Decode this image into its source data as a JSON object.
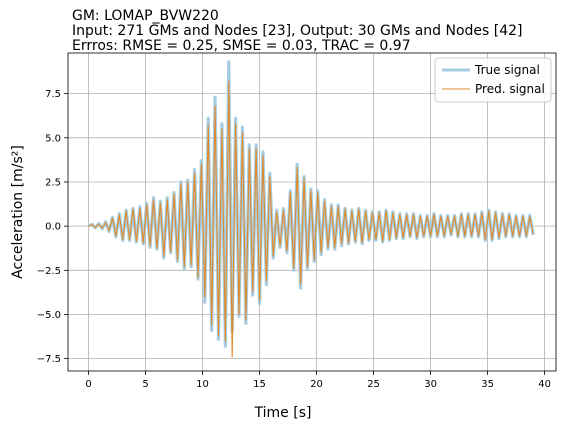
{
  "chart_data": {
    "type": "line",
    "title_lines": [
      "GM: LOMAP_BVW220",
      "Input: 271 GMs and Nodes [23], Output: 30 GMs and Nodes [42]",
      "Errros: RMSE = 0.25, SMSE = 0.03, TRAC = 0.97"
    ],
    "xlabel": "Time [s]",
    "ylabel": "Acceleration [m/s²]",
    "xlim": [
      -1.8,
      41.0
    ],
    "ylim": [
      -8.2,
      9.8
    ],
    "xticks": [
      0,
      5,
      10,
      15,
      20,
      25,
      30,
      35,
      40
    ],
    "yticks": [
      -7.5,
      -5.0,
      -2.5,
      0.0,
      2.5,
      5.0,
      7.5
    ],
    "ytick_labels": [
      "−7.5",
      "−5.0",
      "−2.5",
      "0.0",
      "2.5",
      "5.0",
      "7.5"
    ],
    "grid": true,
    "legend_position": "top-right",
    "series": [
      {
        "name": "True signal",
        "color": "#a6cde2",
        "peaks": [
          [
            0.0,
            0
          ],
          [
            0.3,
            0.1
          ],
          [
            0.6,
            -0.1
          ],
          [
            0.9,
            0.15
          ],
          [
            1.2,
            -0.15
          ],
          [
            1.5,
            0.25
          ],
          [
            1.8,
            -0.3
          ],
          [
            2.1,
            0.5
          ],
          [
            2.4,
            -0.6
          ],
          [
            2.7,
            0.7
          ],
          [
            3.0,
            -0.8
          ],
          [
            3.3,
            0.9
          ],
          [
            3.6,
            -0.8
          ],
          [
            3.9,
            1.0
          ],
          [
            4.2,
            -0.9
          ],
          [
            4.5,
            1.1
          ],
          [
            4.8,
            -1.0
          ],
          [
            5.1,
            1.3
          ],
          [
            5.4,
            -1.2
          ],
          [
            5.7,
            1.6
          ],
          [
            6.0,
            -1.3
          ],
          [
            6.3,
            1.4
          ],
          [
            6.6,
            -1.8
          ],
          [
            6.9,
            1.6
          ],
          [
            7.2,
            -1.5
          ],
          [
            7.5,
            1.9
          ],
          [
            7.8,
            -2.0
          ],
          [
            8.1,
            2.5
          ],
          [
            8.4,
            -2.4
          ],
          [
            8.7,
            2.6
          ],
          [
            9.0,
            -2.3
          ],
          [
            9.3,
            3.2
          ],
          [
            9.6,
            -3.0
          ],
          [
            9.9,
            3.7
          ],
          [
            10.2,
            -4.3
          ],
          [
            10.5,
            6.1
          ],
          [
            10.8,
            -5.9
          ],
          [
            11.1,
            7.3
          ],
          [
            11.4,
            -6.4
          ],
          [
            11.7,
            5.8
          ],
          [
            12.0,
            -6.8
          ],
          [
            12.3,
            9.3
          ],
          [
            12.6,
            -6.0
          ],
          [
            12.9,
            6.1
          ],
          [
            13.2,
            -5.1
          ],
          [
            13.5,
            5.6
          ],
          [
            13.8,
            -5.5
          ],
          [
            14.1,
            4.6
          ],
          [
            14.4,
            -3.9
          ],
          [
            14.7,
            4.6
          ],
          [
            15.0,
            -4.4
          ],
          [
            15.3,
            4.2
          ],
          [
            15.6,
            -3.3
          ],
          [
            15.9,
            3.0
          ],
          [
            16.2,
            -1.8
          ],
          [
            16.5,
            0.9
          ],
          [
            16.8,
            -1.2
          ],
          [
            17.1,
            1.0
          ],
          [
            17.4,
            -1.5
          ],
          [
            17.7,
            2.0
          ],
          [
            18.0,
            -2.5
          ],
          [
            18.3,
            3.5
          ],
          [
            18.6,
            -3.5
          ],
          [
            18.9,
            2.8
          ],
          [
            19.2,
            -2.4
          ],
          [
            19.5,
            2.1
          ],
          [
            19.8,
            -2.0
          ],
          [
            20.1,
            2.0
          ],
          [
            20.4,
            -1.6
          ],
          [
            20.7,
            1.5
          ],
          [
            21.0,
            -1.3
          ],
          [
            21.3,
            1.2
          ],
          [
            21.6,
            -1.3
          ],
          [
            21.9,
            1.2
          ],
          [
            22.2,
            -1.1
          ],
          [
            22.5,
            1.0
          ],
          [
            22.8,
            -1.0
          ],
          [
            23.1,
            0.9
          ],
          [
            23.4,
            -0.9
          ],
          [
            23.7,
            1.0
          ],
          [
            24.0,
            -1.0
          ],
          [
            24.3,
            0.9
          ],
          [
            24.6,
            -0.8
          ],
          [
            24.9,
            0.8
          ],
          [
            25.2,
            -0.8
          ],
          [
            25.5,
            0.8
          ],
          [
            25.8,
            -0.9
          ],
          [
            26.1,
            0.9
          ],
          [
            26.4,
            -0.8
          ],
          [
            26.7,
            0.8
          ],
          [
            27.0,
            -0.7
          ],
          [
            27.3,
            0.7
          ],
          [
            27.6,
            -0.7
          ],
          [
            27.9,
            0.7
          ],
          [
            28.2,
            -0.6
          ],
          [
            28.5,
            0.7
          ],
          [
            28.8,
            -0.7
          ],
          [
            29.1,
            0.6
          ],
          [
            29.4,
            -0.6
          ],
          [
            29.7,
            0.6
          ],
          [
            30.0,
            -0.6
          ],
          [
            30.3,
            0.7
          ],
          [
            30.6,
            -0.6
          ],
          [
            30.9,
            0.6
          ],
          [
            31.2,
            -0.6
          ],
          [
            31.5,
            0.6
          ],
          [
            31.8,
            -0.5
          ],
          [
            32.1,
            0.6
          ],
          [
            32.4,
            -0.6
          ],
          [
            32.7,
            0.7
          ],
          [
            33.0,
            -0.6
          ],
          [
            33.3,
            0.7
          ],
          [
            33.6,
            -0.6
          ],
          [
            33.9,
            0.7
          ],
          [
            34.2,
            -0.6
          ],
          [
            34.5,
            0.8
          ],
          [
            34.8,
            -0.8
          ],
          [
            35.1,
            0.9
          ],
          [
            35.4,
            -0.8
          ],
          [
            35.7,
            0.8
          ],
          [
            36.0,
            -0.7
          ],
          [
            36.3,
            0.7
          ],
          [
            36.6,
            -0.6
          ],
          [
            36.9,
            0.7
          ],
          [
            37.2,
            -0.6
          ],
          [
            37.5,
            0.6
          ],
          [
            37.8,
            -0.6
          ],
          [
            38.1,
            0.6
          ],
          [
            38.4,
            -0.6
          ],
          [
            38.7,
            0.6
          ],
          [
            39.0,
            -0.5
          ]
        ]
      },
      {
        "name": "Pred. signal",
        "color": "#e08a2b",
        "peaks": [
          [
            0.0,
            0
          ],
          [
            0.3,
            0.08
          ],
          [
            0.6,
            -0.08
          ],
          [
            0.9,
            0.12
          ],
          [
            1.2,
            -0.12
          ],
          [
            1.5,
            0.2
          ],
          [
            1.8,
            -0.25
          ],
          [
            2.1,
            0.45
          ],
          [
            2.4,
            -0.55
          ],
          [
            2.7,
            0.65
          ],
          [
            3.0,
            -0.75
          ],
          [
            3.3,
            0.85
          ],
          [
            3.6,
            -0.75
          ],
          [
            3.9,
            0.95
          ],
          [
            4.2,
            -0.85
          ],
          [
            4.5,
            1.0
          ],
          [
            4.8,
            -0.95
          ],
          [
            5.1,
            1.2
          ],
          [
            5.4,
            -1.1
          ],
          [
            5.7,
            1.5
          ],
          [
            6.0,
            -1.25
          ],
          [
            6.3,
            1.3
          ],
          [
            6.6,
            -1.7
          ],
          [
            6.9,
            1.5
          ],
          [
            7.2,
            -1.45
          ],
          [
            7.5,
            1.8
          ],
          [
            7.8,
            -1.9
          ],
          [
            8.1,
            2.4
          ],
          [
            8.4,
            -2.3
          ],
          [
            8.7,
            2.5
          ],
          [
            9.0,
            -2.2
          ],
          [
            9.3,
            3.0
          ],
          [
            9.6,
            -2.9
          ],
          [
            9.9,
            3.5
          ],
          [
            10.2,
            -4.0
          ],
          [
            10.5,
            5.7
          ],
          [
            10.8,
            -5.6
          ],
          [
            11.1,
            6.8
          ],
          [
            11.4,
            -6.2
          ],
          [
            11.7,
            5.5
          ],
          [
            12.0,
            -6.5
          ],
          [
            12.3,
            8.2
          ],
          [
            12.6,
            -7.4
          ],
          [
            12.9,
            5.8
          ],
          [
            13.2,
            -5.0
          ],
          [
            13.5,
            5.3
          ],
          [
            13.8,
            -5.3
          ],
          [
            14.1,
            4.4
          ],
          [
            14.4,
            -3.7
          ],
          [
            14.7,
            4.4
          ],
          [
            15.0,
            -4.2
          ],
          [
            15.3,
            4.0
          ],
          [
            15.6,
            -3.1
          ],
          [
            15.9,
            2.8
          ],
          [
            16.2,
            -1.7
          ],
          [
            16.5,
            0.8
          ],
          [
            16.8,
            -1.1
          ],
          [
            17.1,
            0.9
          ],
          [
            17.4,
            -1.4
          ],
          [
            17.7,
            1.9
          ],
          [
            18.0,
            -2.4
          ],
          [
            18.3,
            3.3
          ],
          [
            18.6,
            -3.3
          ],
          [
            18.9,
            2.7
          ],
          [
            19.2,
            -2.3
          ],
          [
            19.5,
            2.0
          ],
          [
            19.8,
            -1.9
          ],
          [
            20.1,
            1.9
          ],
          [
            20.4,
            -1.5
          ],
          [
            20.7,
            1.4
          ],
          [
            21.0,
            -1.2
          ],
          [
            21.3,
            1.1
          ],
          [
            21.6,
            -1.2
          ],
          [
            21.9,
            1.1
          ],
          [
            22.2,
            -1.0
          ],
          [
            22.5,
            0.95
          ],
          [
            22.8,
            -0.95
          ],
          [
            23.1,
            0.85
          ],
          [
            23.4,
            -0.85
          ],
          [
            23.7,
            0.95
          ],
          [
            24.0,
            -0.95
          ],
          [
            24.3,
            0.85
          ],
          [
            24.6,
            -0.75
          ],
          [
            24.9,
            0.75
          ],
          [
            25.2,
            -0.75
          ],
          [
            25.5,
            0.75
          ],
          [
            25.8,
            -0.85
          ],
          [
            26.1,
            0.85
          ],
          [
            26.4,
            -0.75
          ],
          [
            26.7,
            0.75
          ],
          [
            27.0,
            -0.65
          ],
          [
            27.3,
            0.65
          ],
          [
            27.6,
            -0.65
          ],
          [
            27.9,
            0.65
          ],
          [
            28.2,
            -0.55
          ],
          [
            28.5,
            0.65
          ],
          [
            28.8,
            -0.65
          ],
          [
            29.1,
            0.55
          ],
          [
            29.4,
            -0.55
          ],
          [
            29.7,
            0.55
          ],
          [
            30.0,
            -0.55
          ],
          [
            30.3,
            0.65
          ],
          [
            30.6,
            -0.55
          ],
          [
            30.9,
            0.55
          ],
          [
            31.2,
            -0.55
          ],
          [
            31.5,
            0.55
          ],
          [
            31.8,
            -0.45
          ],
          [
            32.1,
            0.55
          ],
          [
            32.4,
            -0.55
          ],
          [
            32.7,
            0.65
          ],
          [
            33.0,
            -0.55
          ],
          [
            33.3,
            0.65
          ],
          [
            33.6,
            -0.55
          ],
          [
            33.9,
            0.65
          ],
          [
            34.2,
            -0.55
          ],
          [
            34.5,
            0.75
          ],
          [
            34.8,
            -0.75
          ],
          [
            35.1,
            0.85
          ],
          [
            35.4,
            -0.75
          ],
          [
            35.7,
            0.75
          ],
          [
            36.0,
            -0.65
          ],
          [
            36.3,
            0.65
          ],
          [
            36.6,
            -0.55
          ],
          [
            36.9,
            0.65
          ],
          [
            37.2,
            -0.55
          ],
          [
            37.5,
            0.55
          ],
          [
            37.8,
            -0.55
          ],
          [
            38.1,
            0.55
          ],
          [
            38.4,
            -0.55
          ],
          [
            38.7,
            0.55
          ],
          [
            39.0,
            -0.45
          ]
        ]
      }
    ]
  }
}
